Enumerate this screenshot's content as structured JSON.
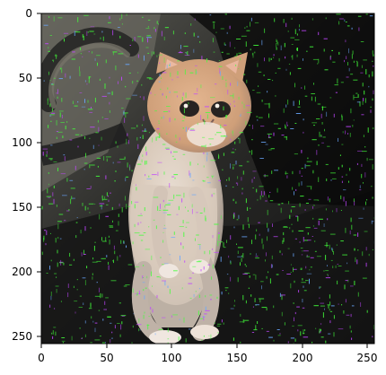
{
  "image_plot": {
    "subject": "noisy photograph of a cream-and-white kitten standing upright on its hind legs against a dark background",
    "x_axis": {
      "range": [
        0,
        255
      ],
      "ticks": [
        "0",
        "50",
        "100",
        "150",
        "200",
        "250"
      ]
    },
    "y_axis": {
      "range": [
        0,
        255
      ],
      "inverted": true,
      "ticks": [
        "0",
        "50",
        "100",
        "150",
        "200",
        "250"
      ]
    },
    "colors": {
      "background_dark": "#1d1d1d",
      "cat_fur": "#d9c7b5",
      "cat_face": "#d8a177",
      "noise_green": "#42ff3a",
      "noise_magenta": "#c046ff"
    }
  }
}
